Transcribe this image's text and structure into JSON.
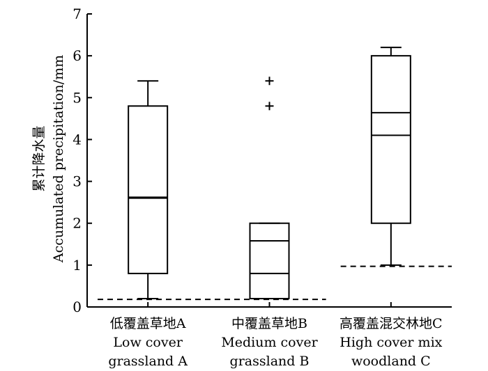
{
  "chart_data": {
    "type": "box",
    "ylabel_cn": "累计降水量",
    "ylabel_en": "Accumulated precipitation/mm",
    "ylim": [
      0,
      7
    ],
    "yticks": [
      "0",
      "1",
      "2",
      "3",
      "4",
      "5",
      "6",
      "7"
    ],
    "categories": [
      {
        "cn": "低覆盖草地A",
        "en1": "Low cover",
        "en2": "grassland A"
      },
      {
        "cn": "中覆盖草地B",
        "en1": "Medium cover",
        "en2": "grassland B"
      },
      {
        "cn": "高覆盖混交林地C",
        "en1": "High cover mix",
        "en2": "woodland C"
      }
    ],
    "boxes": [
      {
        "whisker_low": 0.2,
        "q1": 0.8,
        "median": 2.6,
        "mean": 2.62,
        "q3": 4.8,
        "whisker_high": 5.4,
        "outliers": []
      },
      {
        "whisker_low": 0.2,
        "q1": 0.2,
        "median": 0.8,
        "mean": 1.58,
        "q3": 2.0,
        "whisker_high": 2.0,
        "outliers": [
          4.8,
          5.4
        ]
      },
      {
        "whisker_low": 1.0,
        "q1": 2.0,
        "median": 4.1,
        "mean": 4.64,
        "q3": 6.0,
        "whisker_high": 6.2,
        "outliers": []
      }
    ],
    "reference_lines": [
      {
        "value": 0.18,
        "from_category": 0,
        "to_category": 1
      },
      {
        "value": 0.97,
        "from_category": 2,
        "to_category": 2
      }
    ],
    "grid": false
  }
}
